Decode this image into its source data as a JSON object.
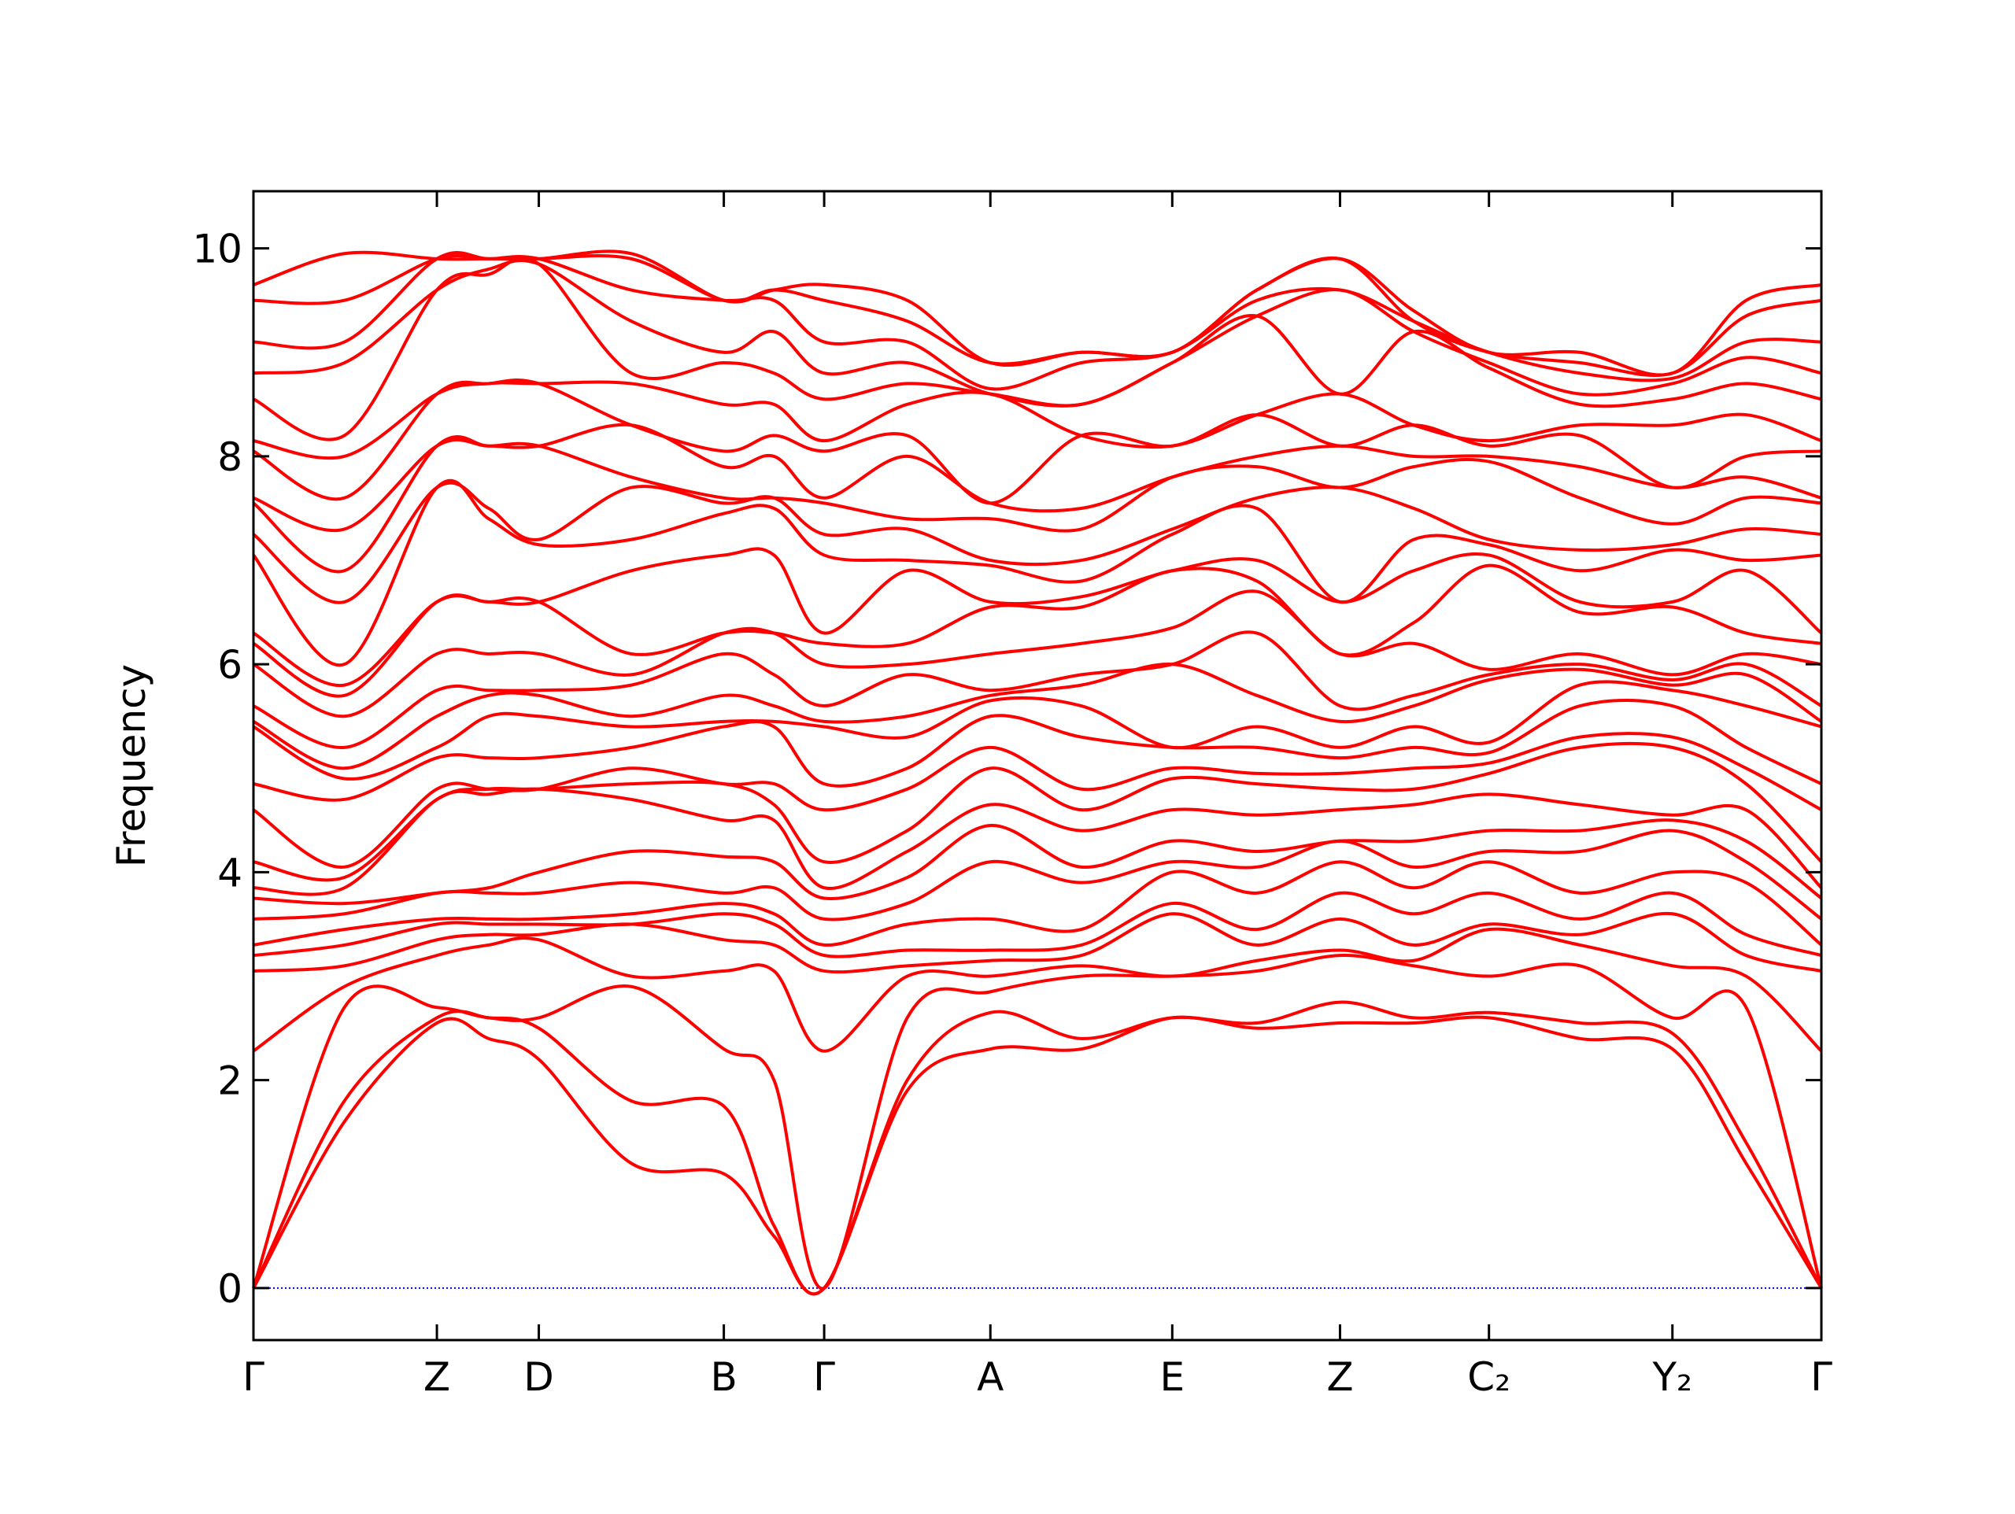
{
  "chart_data": {
    "type": "line",
    "ylabel": "Frequency",
    "color": "#ff0000",
    "zero_line": true,
    "zero_line_color": "#0000ff",
    "x": [
      0,
      0.058,
      0.117,
      0.15,
      0.182,
      0.241,
      0.3,
      0.332,
      0.364,
      0.417,
      0.47,
      0.528,
      0.586,
      0.64,
      0.693,
      0.74,
      0.788,
      0.846,
      0.905,
      0.952,
      1.0
    ],
    "xlim": [
      0,
      1.0
    ],
    "xticks": [
      {
        "value": 0,
        "label": "Γ"
      },
      {
        "value": 0.117,
        "label": "Z"
      },
      {
        "value": 0.182,
        "label": "D"
      },
      {
        "value": 0.3,
        "label": "B"
      },
      {
        "value": 0.364,
        "label": "Γ"
      },
      {
        "value": 0.47,
        "label": "A"
      },
      {
        "value": 0.586,
        "label": "E"
      },
      {
        "value": 0.693,
        "label": "Z"
      },
      {
        "value": 0.788,
        "label": "C₂"
      },
      {
        "value": 0.905,
        "label": "Y₂"
      },
      {
        "value": 1.0,
        "label": "Γ"
      }
    ],
    "ylim": [
      -0.5,
      10.55
    ],
    "yticks": [
      0,
      2,
      4,
      6,
      8,
      10
    ],
    "series": [
      {
        "values": [
          0,
          1.6,
          2.55,
          2.4,
          2.2,
          1.2,
          1.1,
          0.5,
          0,
          1.9,
          2.3,
          2.3,
          2.6,
          2.5,
          2.55,
          2.55,
          2.6,
          2.4,
          2.3,
          1.2,
          0
        ]
      },
      {
        "values": [
          0,
          1.8,
          2.6,
          2.6,
          2.5,
          1.8,
          1.75,
          0.6,
          0,
          2.0,
          2.65,
          2.4,
          2.6,
          2.55,
          2.75,
          2.6,
          2.65,
          2.55,
          2.45,
          1.4,
          0
        ]
      },
      {
        "values": [
          0,
          2.7,
          2.7,
          2.6,
          2.6,
          2.9,
          2.3,
          2.0,
          0,
          2.6,
          2.85,
          3.0,
          3.0,
          3.05,
          3.2,
          3.1,
          3.0,
          3.1,
          2.6,
          2.7,
          0
        ]
      },
      {
        "values": [
          2.28,
          2.9,
          3.2,
          3.3,
          3.35,
          3.0,
          3.05,
          3.05,
          2.28,
          3.0,
          3.0,
          3.1,
          3.0,
          3.15,
          3.25,
          3.15,
          3.45,
          3.3,
          3.1,
          3.0,
          2.28
        ]
      },
      {
        "values": [
          3.05,
          3.1,
          3.35,
          3.4,
          3.4,
          3.5,
          3.35,
          3.3,
          3.05,
          3.1,
          3.15,
          3.2,
          3.6,
          3.3,
          3.55,
          3.3,
          3.5,
          3.4,
          3.6,
          3.2,
          3.05
        ]
      },
      {
        "values": [
          3.2,
          3.3,
          3.5,
          3.5,
          3.5,
          3.5,
          3.6,
          3.5,
          3.2,
          3.25,
          3.25,
          3.3,
          3.7,
          3.45,
          3.8,
          3.6,
          3.8,
          3.55,
          3.8,
          3.4,
          3.2
        ]
      },
      {
        "values": [
          3.3,
          3.45,
          3.55,
          3.55,
          3.55,
          3.6,
          3.7,
          3.6,
          3.3,
          3.5,
          3.55,
          3.45,
          4.0,
          3.8,
          4.1,
          3.85,
          4.1,
          3.8,
          4.0,
          3.9,
          3.3
        ]
      },
      {
        "values": [
          3.55,
          3.6,
          3.8,
          3.8,
          3.8,
          3.9,
          3.8,
          3.85,
          3.55,
          3.7,
          4.1,
          3.9,
          4.1,
          4.05,
          4.3,
          4.05,
          4.2,
          4.2,
          4.4,
          4.1,
          3.55
        ]
      },
      {
        "values": [
          3.75,
          3.7,
          3.8,
          3.85,
          4.0,
          4.2,
          4.15,
          4.1,
          3.75,
          3.95,
          4.45,
          4.05,
          4.3,
          4.2,
          4.3,
          4.3,
          4.4,
          4.4,
          4.5,
          4.3,
          3.75
        ]
      },
      {
        "values": [
          3.85,
          3.85,
          4.7,
          4.75,
          4.8,
          4.7,
          4.5,
          4.5,
          3.85,
          4.2,
          4.65,
          4.4,
          4.6,
          4.55,
          4.6,
          4.65,
          4.75,
          4.65,
          4.55,
          4.6,
          3.85
        ]
      },
      {
        "values": [
          4.1,
          3.95,
          4.7,
          4.8,
          4.8,
          4.85,
          4.85,
          4.65,
          4.1,
          4.4,
          5.0,
          4.6,
          4.9,
          4.85,
          4.8,
          4.8,
          4.95,
          5.2,
          5.2,
          4.85,
          4.1
        ]
      },
      {
        "values": [
          4.6,
          4.05,
          4.8,
          4.8,
          4.8,
          5.0,
          4.85,
          4.85,
          4.6,
          4.8,
          5.2,
          4.8,
          5.0,
          4.95,
          4.95,
          5.0,
          5.05,
          5.3,
          5.3,
          5.0,
          4.6
        ]
      },
      {
        "values": [
          4.85,
          4.7,
          5.1,
          5.1,
          5.1,
          5.2,
          5.4,
          5.4,
          4.85,
          5.0,
          5.5,
          5.3,
          5.2,
          5.2,
          5.1,
          5.2,
          5.15,
          5.6,
          5.6,
          5.2,
          4.85
        ]
      },
      {
        "values": [
          5.4,
          4.9,
          5.2,
          5.5,
          5.5,
          5.4,
          5.45,
          5.45,
          5.4,
          5.3,
          5.65,
          5.6,
          5.2,
          5.4,
          5.2,
          5.4,
          5.25,
          5.8,
          5.75,
          5.6,
          5.4
        ]
      },
      {
        "values": [
          5.45,
          5.0,
          5.5,
          5.7,
          5.7,
          5.5,
          5.7,
          5.6,
          5.45,
          5.5,
          5.7,
          5.8,
          6.0,
          5.7,
          5.45,
          5.6,
          5.85,
          5.95,
          5.8,
          5.9,
          5.45
        ]
      },
      {
        "values": [
          5.6,
          5.2,
          5.75,
          5.75,
          5.75,
          5.8,
          6.1,
          5.9,
          5.6,
          5.9,
          5.75,
          5.9,
          6.0,
          6.3,
          5.6,
          5.7,
          5.9,
          6.0,
          5.85,
          6.0,
          5.6
        ]
      },
      {
        "values": [
          6.0,
          5.5,
          6.1,
          6.1,
          6.1,
          5.9,
          6.3,
          6.3,
          6.0,
          6.0,
          6.1,
          6.2,
          6.35,
          6.7,
          6.1,
          6.2,
          5.95,
          6.1,
          5.9,
          6.1,
          6.0
        ]
      },
      {
        "values": [
          6.2,
          5.7,
          6.6,
          6.6,
          6.6,
          6.1,
          6.3,
          6.3,
          6.2,
          6.2,
          6.55,
          6.55,
          6.9,
          6.8,
          6.1,
          6.4,
          6.95,
          6.5,
          6.55,
          6.3,
          6.2
        ]
      },
      {
        "values": [
          6.3,
          5.8,
          6.6,
          6.6,
          6.6,
          6.9,
          7.05,
          7.05,
          6.3,
          6.9,
          6.6,
          6.65,
          6.9,
          7.0,
          6.6,
          6.9,
          7.05,
          6.6,
          6.6,
          6.9,
          6.3
        ]
      },
      {
        "values": [
          7.05,
          6.0,
          7.7,
          7.4,
          7.15,
          7.2,
          7.45,
          7.5,
          7.05,
          7.0,
          6.95,
          6.8,
          7.25,
          7.5,
          6.6,
          7.2,
          7.15,
          6.9,
          7.1,
          7.0,
          7.05
        ]
      },
      {
        "values": [
          7.25,
          6.6,
          7.7,
          7.5,
          7.2,
          7.7,
          7.55,
          7.6,
          7.25,
          7.3,
          7.0,
          7.0,
          7.3,
          7.6,
          7.7,
          7.5,
          7.2,
          7.1,
          7.15,
          7.3,
          7.25
        ]
      },
      {
        "values": [
          7.55,
          6.9,
          8.1,
          8.1,
          8.1,
          7.8,
          7.6,
          7.6,
          7.55,
          7.4,
          7.4,
          7.3,
          7.8,
          7.9,
          7.7,
          7.9,
          7.95,
          7.6,
          7.35,
          7.6,
          7.55
        ]
      },
      {
        "values": [
          7.6,
          7.3,
          8.1,
          8.1,
          8.1,
          8.3,
          7.9,
          8.0,
          7.6,
          8.0,
          7.55,
          7.5,
          7.8,
          8.0,
          8.1,
          8.0,
          8.0,
          7.9,
          7.7,
          7.8,
          7.6
        ]
      },
      {
        "values": [
          8.05,
          7.6,
          8.6,
          8.7,
          8.7,
          8.3,
          8.05,
          8.2,
          8.05,
          8.2,
          7.55,
          8.2,
          8.1,
          8.4,
          8.1,
          8.3,
          8.1,
          8.2,
          7.7,
          8.0,
          8.05
        ]
      },
      {
        "values": [
          8.15,
          8.0,
          8.6,
          8.7,
          8.7,
          8.7,
          8.5,
          8.5,
          8.15,
          8.5,
          8.6,
          8.2,
          8.1,
          8.4,
          8.6,
          8.3,
          8.15,
          8.3,
          8.3,
          8.4,
          8.15
        ]
      },
      {
        "values": [
          8.55,
          8.2,
          9.6,
          9.75,
          9.85,
          8.8,
          8.9,
          8.8,
          8.55,
          8.7,
          8.6,
          8.5,
          8.9,
          9.35,
          8.6,
          9.2,
          8.85,
          8.5,
          8.55,
          8.7,
          8.55
        ]
      },
      {
        "values": [
          8.8,
          8.9,
          9.6,
          9.8,
          9.85,
          9.3,
          9.0,
          9.2,
          8.8,
          8.9,
          8.6,
          8.5,
          8.9,
          9.35,
          9.6,
          9.2,
          8.9,
          8.6,
          8.7,
          8.95,
          8.8
        ]
      },
      {
        "values": [
          9.1,
          9.1,
          9.9,
          9.9,
          9.9,
          9.6,
          9.5,
          9.5,
          9.1,
          9.1,
          8.65,
          8.9,
          9.0,
          9.5,
          9.6,
          9.3,
          9.0,
          8.8,
          8.75,
          9.1,
          9.1
        ]
      },
      {
        "values": [
          9.5,
          9.5,
          9.9,
          9.9,
          9.9,
          9.9,
          9.5,
          9.6,
          9.5,
          9.3,
          8.9,
          9.0,
          9.0,
          9.6,
          9.9,
          9.3,
          9.0,
          8.9,
          8.8,
          9.35,
          9.5
        ]
      },
      {
        "values": [
          9.65,
          9.95,
          9.9,
          9.9,
          9.9,
          9.95,
          9.5,
          9.6,
          9.65,
          9.5,
          8.9,
          9.0,
          9.0,
          9.6,
          9.9,
          9.4,
          9.0,
          9.0,
          8.8,
          9.5,
          9.65
        ]
      }
    ]
  }
}
